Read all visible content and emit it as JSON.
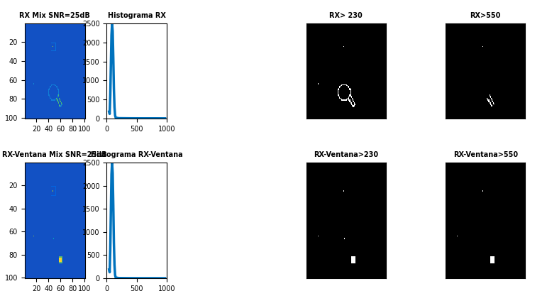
{
  "chart_data": [
    {
      "type": "heatmap",
      "title": "RX Mix SNR=25dB",
      "size": [
        100,
        100
      ],
      "background": 100,
      "clim": [
        0,
        1000
      ],
      "xlim": [
        0.5,
        100.5
      ],
      "ylim": [
        100.5,
        0.5
      ],
      "xticks": [
        20,
        40,
        60,
        80,
        100
      ],
      "yticks": [
        20,
        40,
        60,
        80,
        100
      ],
      "features": [
        {
          "shape": "rect_outline",
          "x": [
            44,
            52
          ],
          "y": [
            21,
            29
          ],
          "value": 200
        },
        {
          "shape": "circle_outline",
          "center": [
            48,
            73
          ],
          "radius": 8,
          "value": 260
        },
        {
          "shape": "line",
          "from": [
            53,
            79
          ],
          "to": [
            59,
            88
          ],
          "value": 600
        },
        {
          "shape": "line",
          "from": [
            56,
            76
          ],
          "to": [
            62,
            86
          ],
          "value": 600
        },
        {
          "shape": "line",
          "from": [
            59,
            88
          ],
          "to": [
            62,
            86
          ],
          "value": 260
        },
        {
          "shape": "point",
          "at": [
            47,
            25
          ],
          "value": 700
        },
        {
          "shape": "point",
          "at": [
            15,
            64
          ],
          "value": 300
        }
      ],
      "histogram": {
        "type": "line",
        "title": "Histograma RX",
        "color": "#0072BD",
        "x": [
          40,
          50,
          60,
          70,
          80,
          90,
          100,
          110,
          120,
          130,
          140,
          150,
          200,
          400,
          600,
          800,
          970
        ],
        "values": [
          180,
          120,
          600,
          1400,
          2200,
          2500,
          2300,
          1600,
          800,
          300,
          80,
          20,
          5,
          2,
          1,
          1,
          0
        ],
        "xlim": [
          0,
          1000
        ],
        "ylim": [
          0,
          2500
        ],
        "xticks": [
          0,
          500,
          1000
        ],
        "yticks": [
          0,
          500,
          1000,
          1500,
          2000,
          2500
        ]
      },
      "masks": [
        {
          "type": "mask",
          "title": "RX> 230",
          "threshold": 230,
          "tick_labels": false
        },
        {
          "type": "mask",
          "title": "RX>550",
          "threshold": 550,
          "tick_labels": false
        }
      ]
    },
    {
      "type": "heatmap",
      "title": "RX-Ventana Mix SNR=25dB",
      "size": [
        100,
        100
      ],
      "background": 100,
      "clim": [
        0,
        1000
      ],
      "xlim": [
        0.5,
        100.5
      ],
      "ylim": [
        100.5,
        0.5
      ],
      "xticks": [
        20,
        40,
        60,
        80,
        100
      ],
      "yticks": [
        20,
        40,
        60,
        80,
        100
      ],
      "features": [
        {
          "shape": "rect_outline",
          "x": [
            44,
            52
          ],
          "y": [
            21,
            29
          ],
          "value": 150
        },
        {
          "shape": "blob",
          "x": [
            57,
            62
          ],
          "y": [
            82,
            87
          ],
          "value": 620
        },
        {
          "shape": "blob",
          "x": [
            58,
            61
          ],
          "y": [
            83,
            86
          ],
          "value": 900
        },
        {
          "shape": "point",
          "at": [
            47,
            25
          ],
          "value": 700
        },
        {
          "shape": "point",
          "at": [
            15,
            64
          ],
          "value": 700
        },
        {
          "shape": "point",
          "at": [
            48,
            66
          ],
          "value": 400
        }
      ],
      "histogram": {
        "type": "line",
        "title": "Histograma RX-Ventana",
        "color": "#0072BD",
        "x": [
          40,
          50,
          60,
          70,
          80,
          90,
          100,
          110,
          120,
          130,
          140,
          150,
          200,
          400,
          600,
          800,
          970
        ],
        "values": [
          190,
          130,
          620,
          1450,
          2250,
          2500,
          2280,
          1580,
          780,
          290,
          70,
          15,
          4,
          2,
          1,
          1,
          0
        ],
        "xlim": [
          0,
          1000
        ],
        "ylim": [
          0,
          2500
        ],
        "xticks": [
          0,
          500,
          1000
        ],
        "yticks": [
          0,
          500,
          1000,
          1500,
          2000,
          2500
        ]
      },
      "masks": [
        {
          "type": "mask",
          "title": "RX-Ventana>230",
          "threshold": 230,
          "tick_labels": false
        },
        {
          "type": "mask",
          "title": "RX-Ventana>550",
          "threshold": 550,
          "tick_labels": false
        }
      ]
    }
  ]
}
